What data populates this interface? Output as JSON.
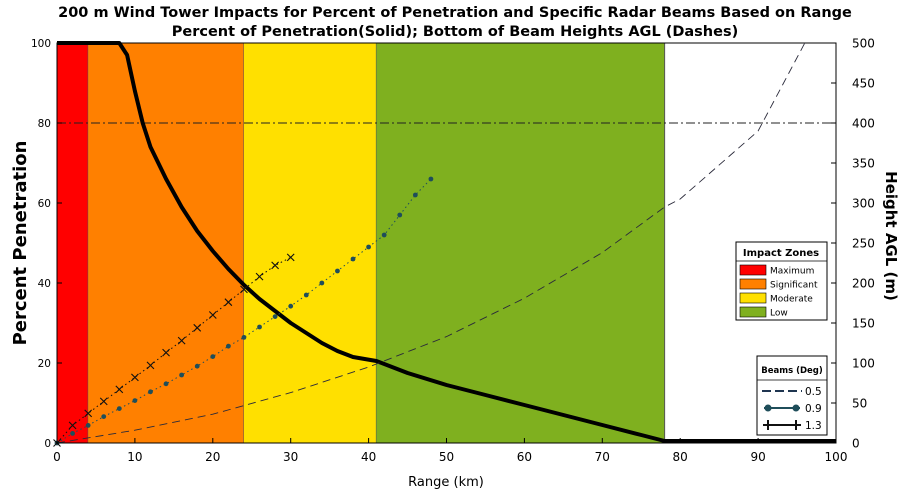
{
  "chart_data": {
    "type": "line",
    "title": "200 m Wind Tower Impacts for Percent of Penetration and Specific Radar Beams Based on Range",
    "subtitle": "Percent of Penetration(Solid); Bottom of Beam Heights AGL (Dashes)",
    "xlabel": "Range (km)",
    "ylabel": "Percent Penetration",
    "y2label": "Height AGL (m)",
    "xlim": [
      0,
      100
    ],
    "ylim": [
      0,
      100
    ],
    "y2lim": [
      0,
      500
    ],
    "xticks": [
      "0",
      "10",
      "20",
      "30",
      "40",
      "50",
      "60",
      "70",
      "80",
      "90",
      "100"
    ],
    "yticks": [
      "0",
      "20",
      "40",
      "60",
      "80",
      "100"
    ],
    "y2ticks": [
      "0",
      "50",
      "100",
      "150",
      "200",
      "250",
      "300",
      "350",
      "400",
      "450",
      "500"
    ],
    "zones": [
      {
        "name": "Maximum",
        "from": 0,
        "to": 4,
        "color": "#ff0000"
      },
      {
        "name": "Significant",
        "from": 4,
        "to": 24,
        "color": "#ff8000"
      },
      {
        "name": "Moderate",
        "from": 24,
        "to": 41,
        "color": "#ffe000"
      },
      {
        "name": "Low",
        "from": 41,
        "to": 78,
        "color": "#7fb01f"
      }
    ],
    "reference_line": {
      "y_height_m": 400,
      "style": "dash-dot"
    },
    "series": [
      {
        "name": "Percent Penetration",
        "axis": "left",
        "style": "solid",
        "x": [
          0,
          8,
          9,
          10,
          11,
          12,
          14,
          16,
          18,
          20,
          22,
          24,
          26,
          28,
          30,
          32,
          34,
          36,
          38,
          41,
          45,
          50,
          55,
          60,
          65,
          70,
          75,
          78,
          80,
          90,
          100
        ],
        "y": [
          100,
          100,
          97,
          88,
          80,
          74,
          66,
          59,
          53,
          48,
          43.5,
          39.5,
          36,
          33,
          30,
          27.5,
          25,
          23,
          21.5,
          20.5,
          17.5,
          14.5,
          12,
          9.5,
          7,
          4.5,
          2,
          0.5,
          0.5,
          0.5,
          0.5
        ]
      },
      {
        "name": "0.5",
        "axis": "right",
        "style": "dash",
        "marker": "none",
        "x": [
          0,
          10,
          20,
          30,
          40,
          50,
          60,
          70,
          78,
          80,
          90,
          96
        ],
        "y": [
          0,
          16,
          36,
          63,
          95,
          133,
          181,
          238,
          295,
          305,
          390,
          500
        ]
      },
      {
        "name": "0.9",
        "axis": "right",
        "style": "dot",
        "marker": "circle",
        "x": [
          0,
          2,
          4,
          6,
          8,
          10,
          12,
          14,
          16,
          18,
          20,
          22,
          24,
          26,
          28,
          30,
          32,
          34,
          36,
          38,
          40,
          42,
          44,
          46,
          48
        ],
        "y": [
          0,
          12,
          22,
          33,
          43,
          53,
          64,
          74,
          85,
          96,
          108,
          121,
          132,
          145,
          158,
          171,
          185,
          200,
          215,
          230,
          245,
          260,
          285,
          310,
          330
        ]
      },
      {
        "name": "1.3",
        "axis": "right",
        "style": "dot",
        "marker": "plus",
        "x": [
          0,
          2,
          4,
          6,
          8,
          10,
          12,
          14,
          16,
          18,
          20,
          22,
          24,
          26,
          28,
          30
        ],
        "y": [
          0,
          22,
          37,
          52,
          67,
          82,
          97,
          113,
          128,
          144,
          160,
          176,
          192,
          208,
          222,
          232
        ]
      }
    ],
    "legend_zones": {
      "title": "Impact Zones",
      "placement": "right-middle"
    },
    "legend_beams": {
      "title": "Beams (Deg)",
      "placement": "bottom-right"
    }
  }
}
